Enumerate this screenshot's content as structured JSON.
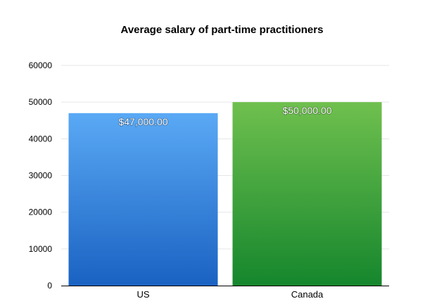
{
  "chart_data": {
    "type": "bar",
    "title": "Average salary of part-time practitioners",
    "categories": [
      "US",
      "Canada"
    ],
    "values": [
      47000,
      50000
    ],
    "data_labels": [
      "$47,000.00",
      "$50,000.00"
    ],
    "ylim": [
      0,
      60000
    ],
    "yticks": [
      0,
      10000,
      20000,
      30000,
      40000,
      50000,
      60000
    ],
    "xlabel": "",
    "ylabel": "",
    "grid": true,
    "legend": "none",
    "colors": {
      "US": {
        "top": "#5aa9f5",
        "bottom": "#1a62c2"
      },
      "Canada": {
        "top": "#6fc04e",
        "bottom": "#15862d"
      },
      "grid": "#e6e6e6",
      "axis": "#000000"
    }
  }
}
